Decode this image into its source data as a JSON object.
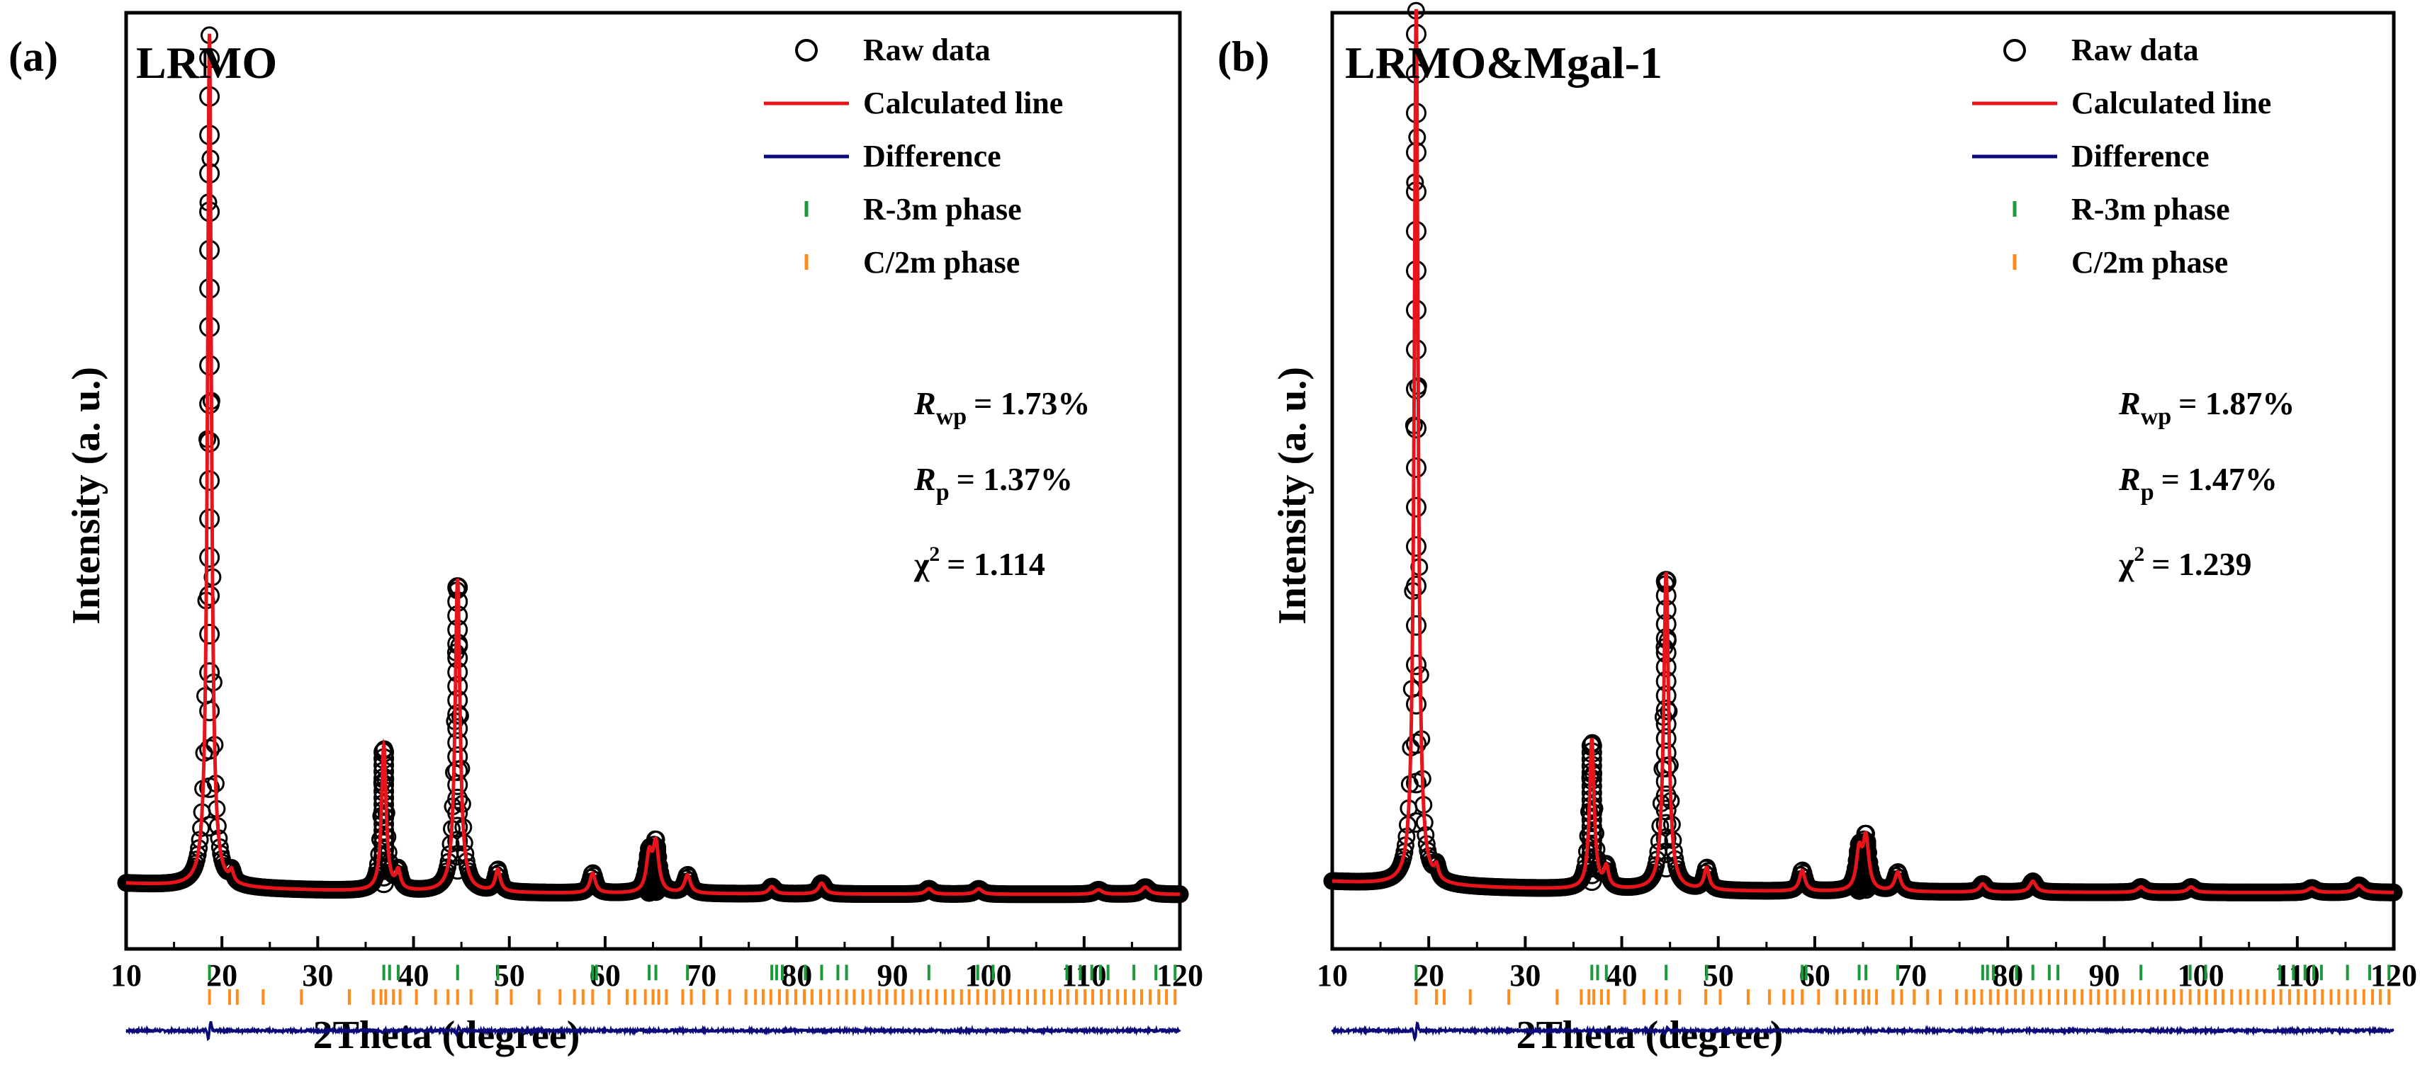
{
  "figure": {
    "x_axis_title": "2Theta (degree)",
    "y_axis_title": "Intensity (a. u.)"
  },
  "legend": [
    {
      "marker": "circle-open",
      "label": "Raw data",
      "color": "#000000"
    },
    {
      "marker": "line",
      "label": "Calculated line",
      "color": "#e8141b"
    },
    {
      "marker": "line",
      "label": "Difference",
      "color": "#0a0a78"
    },
    {
      "marker": "tick",
      "label": "R-3m phase",
      "color": "#1a9a3a"
    },
    {
      "marker": "tick",
      "label": "C/2m phase",
      "color": "#ff8c1a"
    }
  ],
  "colors": {
    "raw": "#000000",
    "calc": "#e8141b",
    "diff": "#0a0a78",
    "r3m": "#1a9a3a",
    "c2m": "#ff8c1a"
  },
  "chart_data": [
    {
      "type": "line",
      "panel_label": "(a)",
      "sample_label": "LRMO",
      "title": "",
      "xlabel": "2Theta (degree)",
      "ylabel": "Intensity (a. u.)",
      "xlim": [
        10,
        120
      ],
      "ylim": [
        0,
        100
      ],
      "x_ticks": [
        10,
        20,
        30,
        40,
        50,
        60,
        70,
        80,
        90,
        100,
        110,
        120
      ],
      "x_tick_labels": [
        "10",
        "20",
        "30",
        "40",
        "50",
        "60",
        "70",
        "80",
        "90",
        "100",
        "110",
        "120"
      ],
      "baseline": 6.0,
      "peaks": [
        {
          "x": 18.7,
          "height": 94.0
        },
        {
          "x": 21.0,
          "height": 1.2
        },
        {
          "x": 36.9,
          "height": 16.0
        },
        {
          "x": 38.4,
          "height": 2.0
        },
        {
          "x": 44.6,
          "height": 34.5
        },
        {
          "x": 48.8,
          "height": 2.4
        },
        {
          "x": 58.7,
          "height": 2.2
        },
        {
          "x": 64.6,
          "height": 4.0
        },
        {
          "x": 65.3,
          "height": 5.2
        },
        {
          "x": 68.6,
          "height": 2.0
        },
        {
          "x": 77.4,
          "height": 0.8
        },
        {
          "x": 82.6,
          "height": 1.2
        },
        {
          "x": 93.8,
          "height": 0.6
        },
        {
          "x": 99.0,
          "height": 0.6
        },
        {
          "x": 111.5,
          "height": 0.5
        },
        {
          "x": 116.4,
          "height": 0.8
        }
      ],
      "r3m_ticks": [
        18.7,
        36.9,
        37.5,
        38.4,
        44.6,
        48.8,
        58.7,
        59.1,
        64.6,
        65.3,
        68.6,
        77.4,
        77.9,
        78.5,
        80.9,
        82.6,
        84.3,
        85.2,
        93.8,
        98.9,
        100.5,
        108.2,
        109.6,
        110.8,
        111.7,
        112.5,
        115.2,
        117.5,
        119.5
      ],
      "c2m_ticks": [
        18.7,
        20.8,
        21.6,
        24.3,
        28.3,
        33.3,
        35.8,
        36.6,
        37.1,
        37.9,
        38.6,
        40.3,
        42.3,
        43.6,
        44.6,
        46.0,
        48.7,
        50.2,
        53.1,
        55.3,
        56.8,
        57.7,
        58.7,
        60.4,
        62.3,
        63.1,
        64.2,
        65.0,
        65.6,
        66.4,
        68.1,
        69.0,
        70.3,
        71.7,
        73.0,
        74.7,
        75.7,
        76.5,
        77.3,
        78.2,
        79.0,
        79.9,
        80.8,
        81.6,
        82.5,
        83.4,
        84.3,
        85.2,
        86.0,
        86.9,
        87.7,
        88.6,
        89.4,
        90.3,
        91.1,
        92.0,
        92.9,
        93.7,
        94.6,
        95.5,
        96.3,
        97.2,
        98.0,
        98.9,
        99.8,
        100.6,
        101.5,
        102.3,
        103.2,
        104.1,
        104.9,
        105.8,
        106.6,
        107.5,
        108.3,
        109.2,
        110.1,
        110.9,
        111.8,
        112.6,
        113.5,
        114.3,
        115.2,
        116.0,
        116.9,
        117.8,
        118.6,
        119.5
      ],
      "stats": {
        "rwp_symbol": "R",
        "rwp_sub": "wp",
        "rwp_value": "= 1.73%",
        "rp_symbol": "R",
        "rp_sub": "p",
        "rp_value": "= 1.37%",
        "chi_symbol": "χ",
        "chi_sup": "2",
        "chi_value": "= 1.114"
      }
    },
    {
      "type": "line",
      "panel_label": "(b)",
      "sample_label": "LRMO&Mgal-1",
      "title": "",
      "xlabel": "2Theta (degree)",
      "ylabel": "Intensity (a. u.)",
      "xlim": [
        10,
        120
      ],
      "ylim": [
        0,
        100
      ],
      "x_ticks": [
        10,
        20,
        30,
        40,
        50,
        60,
        70,
        80,
        90,
        100,
        110,
        120
      ],
      "x_tick_labels": [
        "10",
        "20",
        "30",
        "40",
        "50",
        "60",
        "70",
        "80",
        "90",
        "100",
        "110",
        "120"
      ],
      "baseline": 6.2,
      "peaks": [
        {
          "x": 18.7,
          "height": 96.5
        },
        {
          "x": 20.8,
          "height": 1.4
        },
        {
          "x": 36.9,
          "height": 16.5
        },
        {
          "x": 38.4,
          "height": 2.2
        },
        {
          "x": 44.6,
          "height": 35.0
        },
        {
          "x": 48.8,
          "height": 2.4
        },
        {
          "x": 58.7,
          "height": 2.3
        },
        {
          "x": 64.6,
          "height": 4.2
        },
        {
          "x": 65.3,
          "height": 5.6
        },
        {
          "x": 68.6,
          "height": 2.1
        },
        {
          "x": 77.4,
          "height": 0.9
        },
        {
          "x": 82.6,
          "height": 1.2
        },
        {
          "x": 93.8,
          "height": 0.6
        },
        {
          "x": 99.0,
          "height": 0.6
        },
        {
          "x": 111.5,
          "height": 0.5
        },
        {
          "x": 116.4,
          "height": 0.8
        }
      ],
      "r3m_ticks": [
        18.7,
        36.9,
        37.5,
        38.4,
        44.6,
        48.8,
        58.7,
        59.1,
        64.6,
        65.3,
        68.6,
        77.4,
        77.9,
        78.5,
        80.9,
        82.6,
        84.3,
        85.2,
        93.8,
        98.9,
        100.5,
        108.2,
        109.6,
        110.8,
        111.7,
        112.5,
        115.2,
        117.5,
        119.5
      ],
      "c2m_ticks": [
        18.7,
        20.8,
        21.6,
        24.3,
        28.3,
        33.3,
        35.8,
        36.6,
        37.1,
        37.9,
        38.6,
        40.3,
        42.3,
        43.6,
        44.6,
        46.0,
        48.7,
        50.2,
        53.1,
        55.3,
        56.8,
        57.7,
        58.7,
        60.4,
        62.3,
        63.1,
        64.2,
        65.0,
        65.6,
        66.4,
        68.1,
        69.0,
        70.3,
        71.7,
        73.0,
        74.7,
        75.7,
        76.5,
        77.3,
        78.2,
        79.0,
        79.9,
        80.8,
        81.6,
        82.5,
        83.4,
        84.3,
        85.2,
        86.0,
        86.9,
        87.7,
        88.6,
        89.4,
        90.3,
        91.1,
        92.0,
        92.9,
        93.7,
        94.6,
        95.5,
        96.3,
        97.2,
        98.0,
        98.9,
        99.8,
        100.6,
        101.5,
        102.3,
        103.2,
        104.1,
        104.9,
        105.8,
        106.6,
        107.5,
        108.3,
        109.2,
        110.1,
        110.9,
        111.8,
        112.6,
        113.5,
        114.3,
        115.2,
        116.0,
        116.9,
        117.8,
        118.6,
        119.5
      ],
      "stats": {
        "rwp_symbol": "R",
        "rwp_sub": "wp",
        "rwp_value": "= 1.87%",
        "rp_symbol": "R",
        "rp_sub": "p",
        "rp_value": "= 1.47%",
        "chi_symbol": "χ",
        "chi_sup": "2",
        "chi_value": "= 1.239"
      }
    }
  ]
}
